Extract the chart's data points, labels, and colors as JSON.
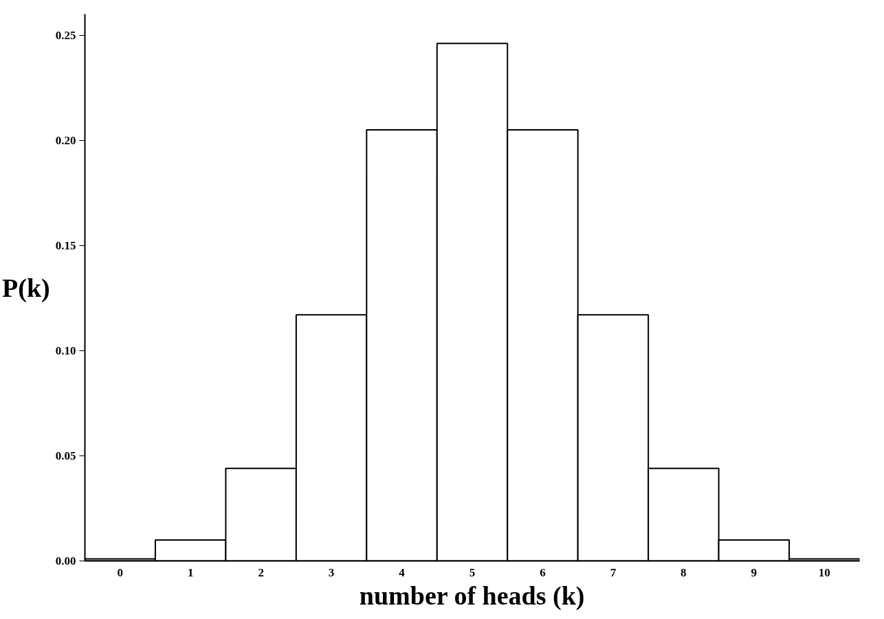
{
  "chart_data": {
    "type": "bar",
    "xlabel": "number of heads (k)",
    "ylabel": "P(k)",
    "categories": [
      "0",
      "1",
      "2",
      "3",
      "4",
      "5",
      "6",
      "7",
      "8",
      "9",
      "10"
    ],
    "values": [
      0.001,
      0.01,
      0.044,
      0.117,
      0.205,
      0.246,
      0.205,
      0.117,
      0.044,
      0.01,
      0.001
    ],
    "color": "#ffffff",
    "ylim": [
      0,
      0.26
    ],
    "yticks": [
      {
        "value": 0,
        "label": "0.00"
      },
      {
        "value": 0.05,
        "label": "0.05"
      },
      {
        "value": 0.1,
        "label": "0.10"
      },
      {
        "value": 0.15,
        "label": "0.15"
      },
      {
        "value": 0.2,
        "label": "0.20"
      },
      {
        "value": 0.25,
        "label": "0.25"
      }
    ],
    "grid": false
  }
}
